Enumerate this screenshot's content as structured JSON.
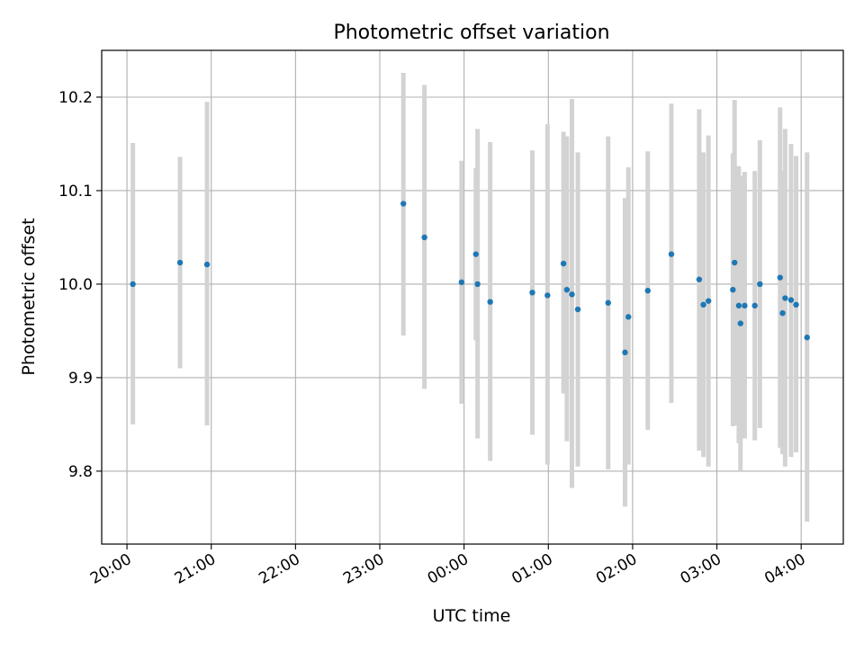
{
  "chart_data": {
    "type": "scatter",
    "title": "Photometric offset variation",
    "xlabel": "UTC time",
    "ylabel": "Photometric offset",
    "x_unit": "hours (UTC, day 2 hours exceed 24)",
    "x_ticks": [
      {
        "value": 20,
        "label": "20:00"
      },
      {
        "value": 21,
        "label": "21:00"
      },
      {
        "value": 22,
        "label": "22:00"
      },
      {
        "value": 23,
        "label": "23:00"
      },
      {
        "value": 24,
        "label": "00:00"
      },
      {
        "value": 25,
        "label": "01:00"
      },
      {
        "value": 26,
        "label": "02:00"
      },
      {
        "value": 27,
        "label": "03:00"
      },
      {
        "value": 28,
        "label": "04:00"
      }
    ],
    "y_ticks": [
      {
        "value": 9.8,
        "label": "9.8"
      },
      {
        "value": 9.9,
        "label": "9.9"
      },
      {
        "value": 10.0,
        "label": "10.0"
      },
      {
        "value": 10.1,
        "label": "10.1"
      },
      {
        "value": 10.2,
        "label": "10.2"
      }
    ],
    "xlim": [
      19.7,
      28.5
    ],
    "ylim": [
      9.722,
      10.25
    ],
    "grid": true,
    "colors": {
      "point": "#1f77b4",
      "errorbar": "#d3d3d3",
      "grid": "#b0b0b0"
    },
    "points": [
      {
        "x": 20.07,
        "y": 10.0,
        "ylo": 9.85,
        "yhi": 10.151
      },
      {
        "x": 20.63,
        "y": 10.023,
        "ylo": 9.91,
        "yhi": 10.136
      },
      {
        "x": 20.95,
        "y": 10.021,
        "ylo": 9.849,
        "yhi": 10.195
      },
      {
        "x": 23.28,
        "y": 10.086,
        "ylo": 9.945,
        "yhi": 10.226
      },
      {
        "x": 23.53,
        "y": 10.05,
        "ylo": 9.888,
        "yhi": 10.213
      },
      {
        "x": 23.97,
        "y": 10.002,
        "ylo": 9.872,
        "yhi": 10.132
      },
      {
        "x": 24.14,
        "y": 10.032,
        "ylo": 9.94,
        "yhi": 10.124
      },
      {
        "x": 24.16,
        "y": 10.0,
        "ylo": 9.835,
        "yhi": 10.166
      },
      {
        "x": 24.31,
        "y": 9.981,
        "ylo": 9.811,
        "yhi": 10.152
      },
      {
        "x": 24.81,
        "y": 9.991,
        "ylo": 9.839,
        "yhi": 10.143
      },
      {
        "x": 24.99,
        "y": 9.988,
        "ylo": 9.807,
        "yhi": 10.171
      },
      {
        "x": 25.18,
        "y": 10.022,
        "ylo": 9.883,
        "yhi": 10.163
      },
      {
        "x": 25.22,
        "y": 9.994,
        "ylo": 9.832,
        "yhi": 10.158
      },
      {
        "x": 25.28,
        "y": 9.989,
        "ylo": 9.782,
        "yhi": 10.198
      },
      {
        "x": 25.35,
        "y": 9.973,
        "ylo": 9.805,
        "yhi": 10.141
      },
      {
        "x": 25.71,
        "y": 9.98,
        "ylo": 9.802,
        "yhi": 10.158
      },
      {
        "x": 25.91,
        "y": 9.927,
        "ylo": 9.762,
        "yhi": 10.092
      },
      {
        "x": 25.95,
        "y": 9.965,
        "ylo": 9.807,
        "yhi": 10.125
      },
      {
        "x": 26.18,
        "y": 9.993,
        "ylo": 9.844,
        "yhi": 10.142
      },
      {
        "x": 26.46,
        "y": 10.032,
        "ylo": 9.873,
        "yhi": 10.193
      },
      {
        "x": 26.79,
        "y": 10.005,
        "ylo": 9.822,
        "yhi": 10.187
      },
      {
        "x": 26.84,
        "y": 9.978,
        "ylo": 9.815,
        "yhi": 10.141
      },
      {
        "x": 26.9,
        "y": 9.982,
        "ylo": 9.805,
        "yhi": 10.159
      },
      {
        "x": 27.19,
        "y": 9.994,
        "ylo": 9.848,
        "yhi": 10.14
      },
      {
        "x": 27.21,
        "y": 10.023,
        "ylo": 9.849,
        "yhi": 10.197
      },
      {
        "x": 27.26,
        "y": 9.977,
        "ylo": 9.83,
        "yhi": 10.126
      },
      {
        "x": 27.28,
        "y": 9.958,
        "ylo": 9.8,
        "yhi": 10.116
      },
      {
        "x": 27.33,
        "y": 9.977,
        "ylo": 9.835,
        "yhi": 10.12
      },
      {
        "x": 27.45,
        "y": 9.977,
        "ylo": 9.833,
        "yhi": 10.121
      },
      {
        "x": 27.51,
        "y": 10.0,
        "ylo": 9.846,
        "yhi": 10.154
      },
      {
        "x": 27.75,
        "y": 10.007,
        "ylo": 9.825,
        "yhi": 10.189
      },
      {
        "x": 27.78,
        "y": 9.969,
        "ylo": 9.818,
        "yhi": 10.121
      },
      {
        "x": 27.81,
        "y": 9.985,
        "ylo": 9.805,
        "yhi": 10.166
      },
      {
        "x": 27.88,
        "y": 9.983,
        "ylo": 9.815,
        "yhi": 10.15
      },
      {
        "x": 27.94,
        "y": 9.978,
        "ylo": 9.82,
        "yhi": 10.137
      },
      {
        "x": 28.07,
        "y": 9.943,
        "ylo": 9.746,
        "yhi": 10.141
      }
    ]
  }
}
